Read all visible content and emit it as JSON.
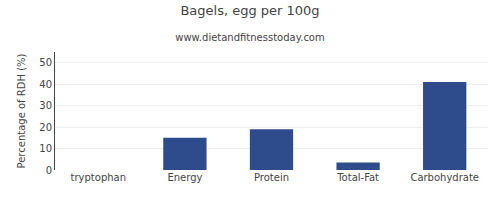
{
  "chart_data": {
    "type": "bar",
    "title": "Bagels, egg per 100g",
    "subtitle": "www.dietandfitnesstoday.com",
    "categories": [
      "tryptophan",
      "Energy",
      "Protein",
      "Total-Fat",
      "Carbohydrate"
    ],
    "values": [
      0,
      15,
      19,
      3.5,
      41
    ],
    "color": "#2e4c8c",
    "ylabel": "Percentage of RDH (%)",
    "ylim": [
      0,
      55
    ],
    "yticks": [
      0,
      10,
      20,
      30,
      40,
      50
    ],
    "grid": true
  }
}
